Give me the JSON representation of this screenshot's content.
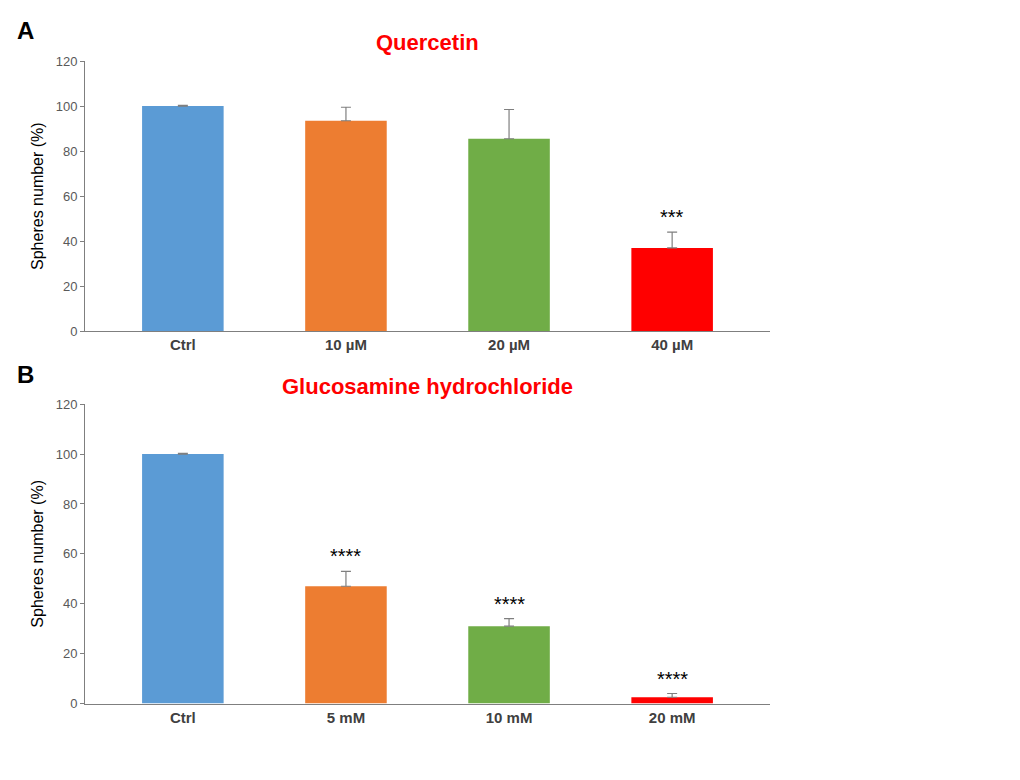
{
  "chart_data": [
    {
      "type": "bar",
      "label": "A",
      "title": "Quercetin",
      "categories": [
        "Ctrl",
        "10 µM",
        "20 µM",
        "40 µM"
      ],
      "values": [
        100,
        93.5,
        85.5,
        37
      ],
      "errors": [
        0.3,
        6,
        13,
        7
      ],
      "colors": [
        "#5b9bd5",
        "#ed7d31",
        "#70ad47",
        "#ff0000"
      ],
      "y_label": "Spheres number (%)",
      "ylim": [
        0,
        120
      ],
      "yticks": [
        0,
        20,
        40,
        60,
        80,
        100,
        120
      ],
      "grid": false,
      "annotations": [
        {
          "category": "40 µM",
          "text": "***"
        }
      ]
    },
    {
      "type": "bar",
      "label": "B",
      "title": "Glucosamine hydrochloride",
      "categories": [
        "Ctrl",
        "5 mM",
        "10 mM",
        "20 mM"
      ],
      "values": [
        100,
        47,
        31,
        2.5
      ],
      "errors": [
        0.3,
        6,
        3,
        1.5
      ],
      "colors": [
        "#5b9bd5",
        "#ed7d31",
        "#70ad47",
        "#ff0000"
      ],
      "y_label": "Spheres number (%)",
      "ylim": [
        0,
        120
      ],
      "yticks": [
        0,
        20,
        40,
        60,
        80,
        100,
        120
      ],
      "grid": false,
      "annotations": [
        {
          "category": "5 mM",
          "text": "****"
        },
        {
          "category": "10 mM",
          "text": "****"
        },
        {
          "category": "20 mM",
          "text": "****"
        }
      ]
    }
  ]
}
